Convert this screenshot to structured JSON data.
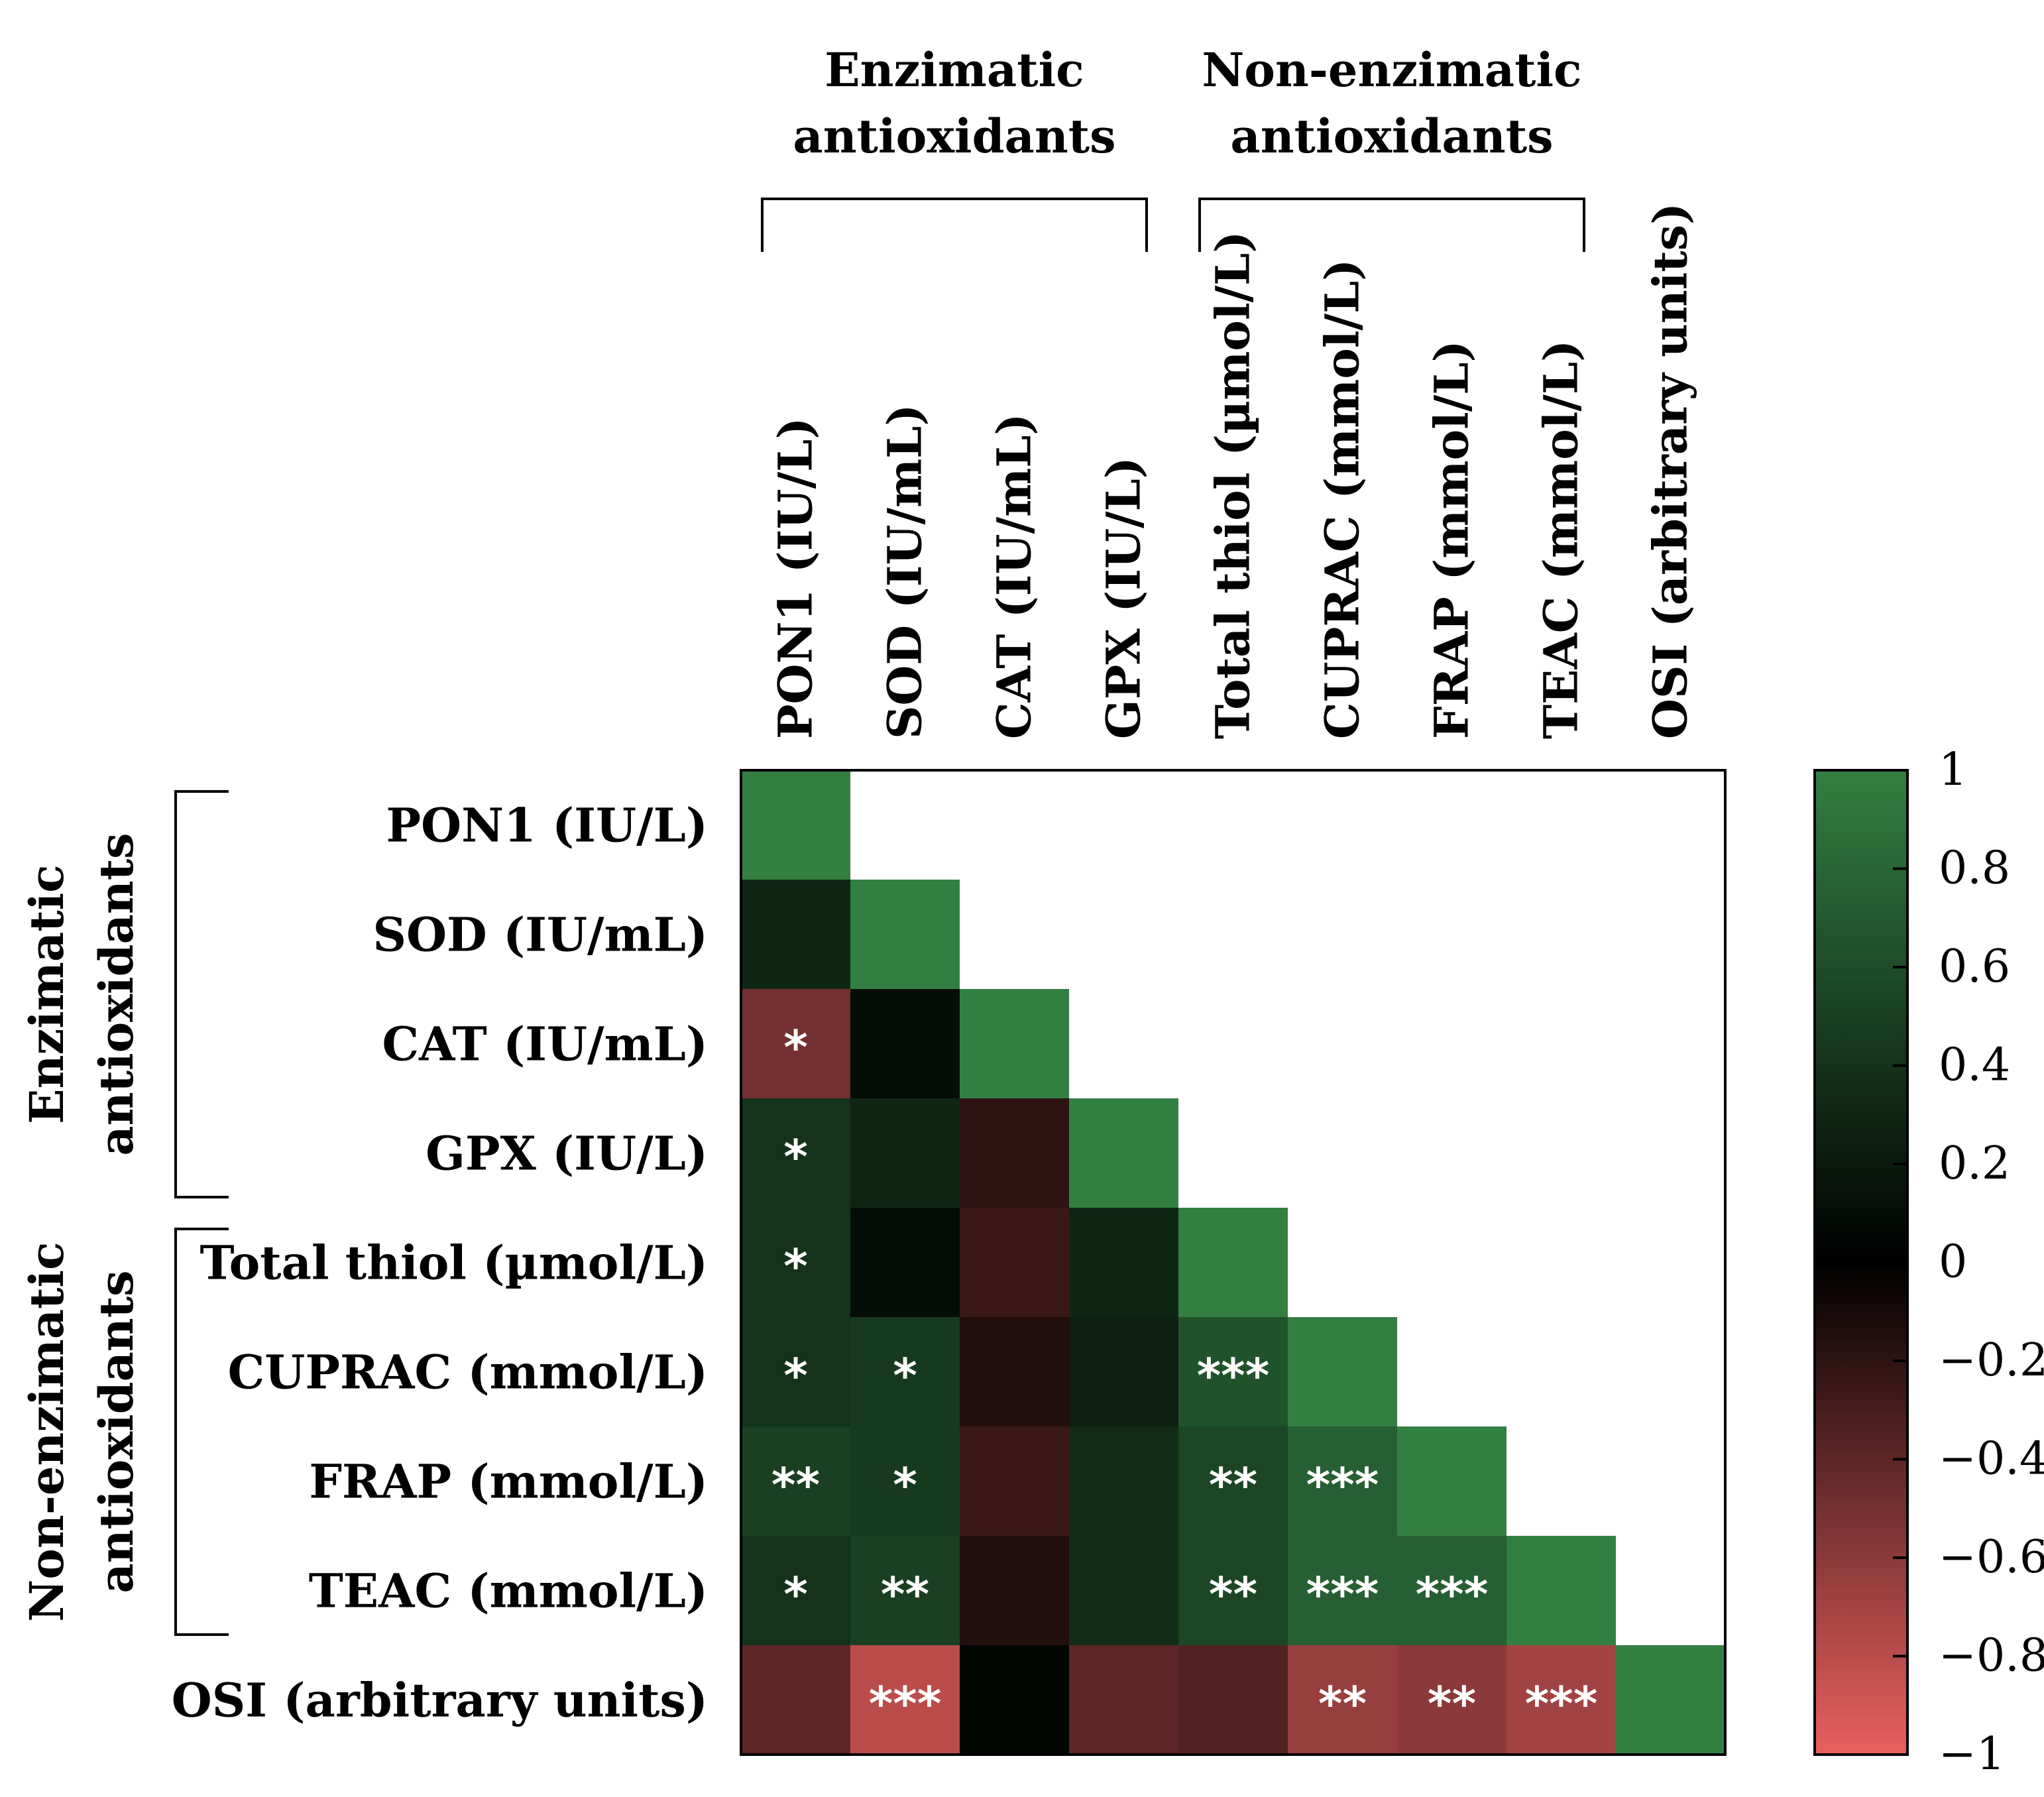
{
  "chart_data": {
    "type": "heatmap",
    "variables": [
      "PON1 (IU/L)",
      "SOD (IU/mL)",
      "CAT (IU/mL)",
      "GPX (IU/L)",
      "Total thiol (µmol/L)",
      "CUPRAC (mmol/L)",
      "FRAP (mmol/L)",
      "TEAC (mmol/L)",
      "OSI (arbitrary units)"
    ],
    "groups": [
      {
        "name": "Enzimatic antioxidants",
        "lines": [
          "Enzimatic",
          "antioxidants"
        ],
        "members": [
          0,
          1,
          2,
          3
        ]
      },
      {
        "name": "Non-enzimatic antioxidants",
        "lines": [
          "Non-enzimatic",
          "antioxidants"
        ],
        "members": [
          4,
          5,
          6,
          7
        ]
      }
    ],
    "matrix": [
      [
        1.0
      ],
      [
        0.3,
        1.0
      ],
      [
        -0.5,
        0.1,
        1.0
      ],
      [
        0.4,
        0.3,
        -0.2,
        1.0
      ],
      [
        0.4,
        0.1,
        -0.25,
        0.3,
        1.0
      ],
      [
        0.4,
        0.45,
        -0.15,
        0.25,
        0.65,
        1.0
      ],
      [
        0.5,
        0.45,
        -0.25,
        0.35,
        0.55,
        0.75,
        1.0
      ],
      [
        0.4,
        0.5,
        -0.15,
        0.35,
        0.55,
        0.75,
        0.75,
        1.0
      ],
      [
        -0.4,
        -0.8,
        0.05,
        -0.4,
        -0.35,
        -0.65,
        -0.6,
        -0.7,
        1.0
      ]
    ],
    "significance": [
      [
        ""
      ],
      [
        "",
        ""
      ],
      [
        "*",
        "",
        ""
      ],
      [
        "*",
        "",
        "",
        ""
      ],
      [
        "*",
        "",
        "",
        "",
        ""
      ],
      [
        "*",
        "*",
        "",
        "",
        "***",
        ""
      ],
      [
        "**",
        "*",
        "",
        "",
        "**",
        "***",
        ""
      ],
      [
        "*",
        "**",
        "",
        "",
        "**",
        "***",
        "***",
        ""
      ],
      [
        "",
        "***",
        "",
        "",
        "",
        "**",
        "**",
        "***",
        ""
      ]
    ],
    "colorbar": {
      "range": [
        -1,
        1
      ],
      "ticks": [
        "1",
        "0.8",
        "0.6",
        "0.4",
        "0.2",
        "0",
        "−0.2",
        "−0.4",
        "−0.6",
        "−0.8",
        "−1"
      ],
      "colors": {
        "positive": "#337f42",
        "zero": "#000000",
        "negative": "#e8605f"
      }
    }
  }
}
